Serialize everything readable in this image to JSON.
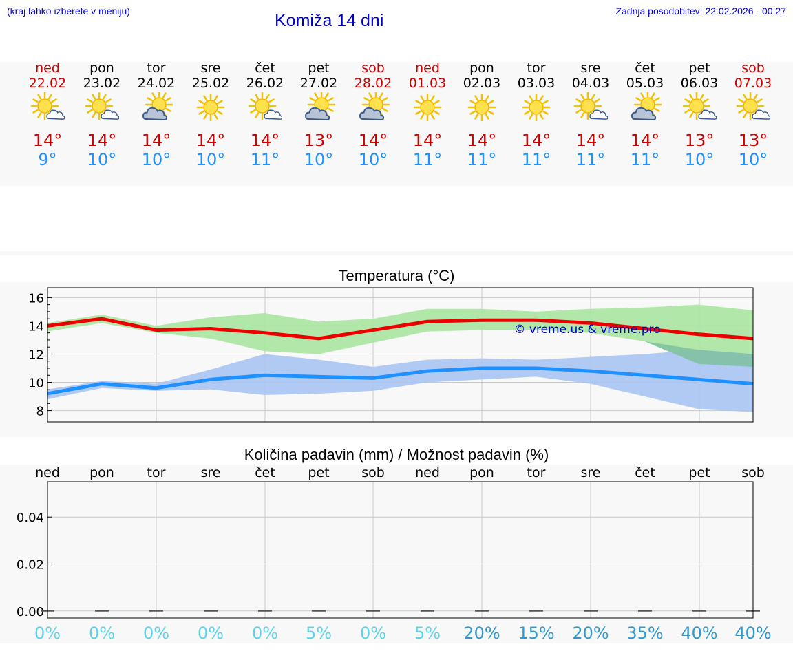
{
  "header": {
    "note": "(kraj lahko izberete v meniju)",
    "title": "Komiža 14 dni",
    "updated": "Zadnja posodobitev: 22.02.2026 - 00:27"
  },
  "days": [
    {
      "name": "ned",
      "date": "22.02",
      "weekend": true,
      "icon": "sun-cloud-icon",
      "tmax": "14°",
      "tmin": "9°"
    },
    {
      "name": "pon",
      "date": "23.02",
      "weekend": false,
      "icon": "sun-cloud-icon",
      "tmax": "14°",
      "tmin": "10°"
    },
    {
      "name": "tor",
      "date": "24.02",
      "weekend": false,
      "icon": "cloud-sun-icon",
      "tmax": "14°",
      "tmin": "10°"
    },
    {
      "name": "sre",
      "date": "25.02",
      "weekend": false,
      "icon": "sun-icon",
      "tmax": "14°",
      "tmin": "10°"
    },
    {
      "name": "čet",
      "date": "26.02",
      "weekend": false,
      "icon": "sun-cloud-icon",
      "tmax": "14°",
      "tmin": "11°"
    },
    {
      "name": "pet",
      "date": "27.02",
      "weekend": false,
      "icon": "cloud-sun-icon",
      "tmax": "13°",
      "tmin": "10°"
    },
    {
      "name": "sob",
      "date": "28.02",
      "weekend": true,
      "icon": "cloud-sun-icon",
      "tmax": "14°",
      "tmin": "10°"
    },
    {
      "name": "ned",
      "date": "01.03",
      "weekend": true,
      "icon": "sun-icon",
      "tmax": "14°",
      "tmin": "11°"
    },
    {
      "name": "pon",
      "date": "02.03",
      "weekend": false,
      "icon": "sun-icon",
      "tmax": "14°",
      "tmin": "11°"
    },
    {
      "name": "tor",
      "date": "03.03",
      "weekend": false,
      "icon": "sun-icon",
      "tmax": "14°",
      "tmin": "11°"
    },
    {
      "name": "sre",
      "date": "04.03",
      "weekend": false,
      "icon": "sun-cloud-icon",
      "tmax": "14°",
      "tmin": "11°"
    },
    {
      "name": "čet",
      "date": "05.03",
      "weekend": false,
      "icon": "cloud-sun-icon",
      "tmax": "14°",
      "tmin": "11°"
    },
    {
      "name": "pet",
      "date": "06.03",
      "weekend": false,
      "icon": "sun-cloud-icon",
      "tmax": "13°",
      "tmin": "10°"
    },
    {
      "name": "sob",
      "date": "07.03",
      "weekend": true,
      "icon": "sun-cloud-icon",
      "tmax": "13°",
      "tmin": "10°"
    }
  ],
  "colors": {
    "max_line": "#ee0000",
    "min_line": "#1e90ff",
    "max_band": "#a8e6a0",
    "min_band": "#a8c4f2",
    "overlap_band": "#7fbfa0",
    "watermark": "#0000cc",
    "prob_low": "#5cd3e8",
    "prob_high": "#3399cc"
  },
  "chart_data": [
    {
      "type": "line",
      "title": "Temperatura (°C)",
      "ylim": [
        7.2,
        16.7
      ],
      "yticks": [
        8,
        10,
        12,
        14,
        16
      ],
      "grid": true,
      "watermark": "© vreme.us & vreme.pro",
      "x": [
        0,
        1,
        2,
        3,
        4,
        5,
        6,
        7,
        8,
        9,
        10,
        11,
        12,
        13
      ],
      "series": [
        {
          "name": "max",
          "values": [
            14.0,
            14.5,
            13.7,
            13.8,
            13.5,
            13.1,
            13.7,
            14.3,
            14.4,
            14.4,
            14.2,
            13.8,
            13.4,
            13.1
          ],
          "band_low": [
            13.6,
            14.2,
            13.5,
            13.1,
            12.2,
            12.0,
            12.8,
            13.6,
            13.7,
            13.7,
            13.5,
            12.9,
            11.3,
            11.1
          ],
          "band_high": [
            14.2,
            14.8,
            14.0,
            14.6,
            14.9,
            14.3,
            14.5,
            15.2,
            15.2,
            15.0,
            15.2,
            15.3,
            15.5,
            15.1
          ]
        },
        {
          "name": "min",
          "values": [
            9.2,
            9.9,
            9.6,
            10.2,
            10.5,
            10.4,
            10.3,
            10.8,
            11.0,
            11.0,
            10.8,
            10.5,
            10.2,
            9.9
          ],
          "band_low": [
            8.8,
            9.6,
            9.4,
            9.5,
            9.1,
            9.2,
            9.4,
            10.0,
            10.2,
            10.4,
            9.9,
            9.0,
            8.1,
            7.9
          ],
          "band_high": [
            9.5,
            10.1,
            9.9,
            10.9,
            12.0,
            11.6,
            11.1,
            11.6,
            11.7,
            11.6,
            11.8,
            12.0,
            12.3,
            12.0
          ]
        }
      ]
    },
    {
      "type": "bar",
      "title": "Količina padavin (mm) / Možnost padavin (%)",
      "categories": [
        "ned",
        "pon",
        "tor",
        "sre",
        "čet",
        "pet",
        "sob",
        "ned",
        "pon",
        "tor",
        "sre",
        "čet",
        "pet",
        "sob"
      ],
      "ylim": [
        -0.003,
        0.055
      ],
      "yticks": [
        "0.00",
        "0.02",
        "0.04"
      ],
      "ytick_values": [
        0,
        0.02,
        0.04
      ],
      "values": [
        0,
        0,
        0,
        0,
        0,
        0,
        0,
        0,
        0,
        0,
        0,
        0,
        0,
        0
      ],
      "probabilities": [
        "0%",
        "0%",
        "0%",
        "0%",
        "0%",
        "5%",
        "0%",
        "5%",
        "20%",
        "15%",
        "20%",
        "35%",
        "40%",
        "40%"
      ],
      "grid": true
    }
  ]
}
